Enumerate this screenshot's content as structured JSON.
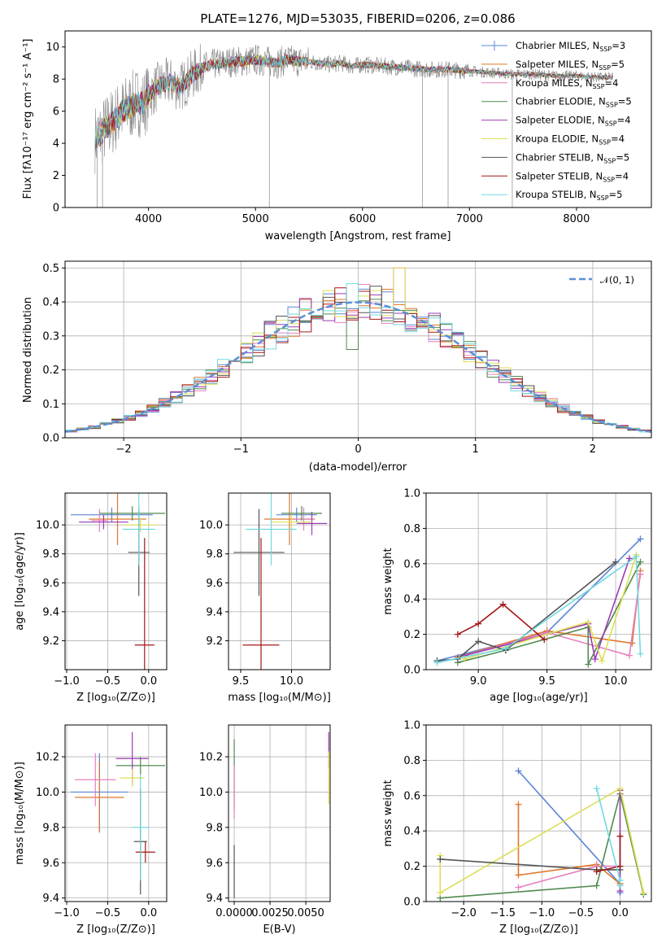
{
  "colors": {
    "chabrier_miles": "#5b84d4",
    "salpeter_miles": "#e0772b",
    "kroupa_miles": "#e67fbf",
    "chabrier_elodie": "#4f8a4f",
    "salpeter_elodie": "#9b3bb5",
    "kroupa_elodie": "#dede55",
    "chabrier_stelib": "#555555",
    "salpeter_stelib": "#a31717",
    "kroupa_stelib": "#6fd9e0",
    "normal": "#5a8fd6"
  },
  "chart_data": [
    {
      "type": "line",
      "name": "spectrum",
      "title": "PLATE=1276, MJD=53035, FIBERID=0206, z=0.086",
      "xlabel": "wavelength [Angstrom, rest frame]",
      "ylabel": "Flux [fλ10⁻¹⁷ erg cm⁻² s⁻¹ A⁻¹]",
      "xlim": [
        3220,
        8700
      ],
      "ylim": [
        0,
        11
      ],
      "xticks": [
        "4000",
        "5000",
        "6000",
        "7000",
        "8000"
      ],
      "yticks": [
        "0",
        "2",
        "4",
        "6",
        "8",
        "10"
      ],
      "grid": false,
      "legend_position": "top-right",
      "legend": [
        {
          "label": "Chabrier MILES, N",
          "sub": "SSP",
          "suffix": "=3"
        },
        {
          "label": "Salpeter MILES, N",
          "sub": "SSP",
          "suffix": "=5"
        },
        {
          "label": "Kroupa MILES, N",
          "sub": "SSP",
          "suffix": "=4"
        },
        {
          "label": "Chabrier ELODIE, N",
          "sub": "SSP",
          "suffix": "=5"
        },
        {
          "label": "Salpeter ELODIE, N",
          "sub": "SSP",
          "suffix": "=4"
        },
        {
          "label": "Kroupa ELODIE, N",
          "sub": "SSP",
          "suffix": "=4"
        },
        {
          "label": "Chabrier STELIB, N",
          "sub": "SSP",
          "suffix": "=5"
        },
        {
          "label": "Salpeter STELIB, N",
          "sub": "SSP",
          "suffix": "=4"
        },
        {
          "label": "Kroupa STELIB, N",
          "sub": "SSP",
          "suffix": "=5"
        }
      ],
      "continuum": [
        [
          3500,
          4.3
        ],
        [
          3600,
          4.9
        ],
        [
          3700,
          5.6
        ],
        [
          3800,
          6.2
        ],
        [
          3900,
          6.6
        ],
        [
          3950,
          6.4
        ],
        [
          4000,
          7.0
        ],
        [
          4100,
          7.6
        ],
        [
          4200,
          7.8
        ],
        [
          4300,
          7.5
        ],
        [
          4400,
          8.2
        ],
        [
          4500,
          8.7
        ],
        [
          4600,
          8.9
        ],
        [
          4700,
          9.0
        ],
        [
          4800,
          9.1
        ],
        [
          4900,
          9.1
        ],
        [
          5000,
          9.2
        ],
        [
          5100,
          9.1
        ],
        [
          5200,
          9.0
        ],
        [
          5300,
          9.2
        ],
        [
          5400,
          9.1
        ],
        [
          5500,
          9.1
        ],
        [
          5600,
          9.0
        ],
        [
          5700,
          8.9
        ],
        [
          5800,
          9.0
        ],
        [
          5900,
          8.8
        ],
        [
          6000,
          8.9
        ],
        [
          6200,
          8.8
        ],
        [
          6400,
          8.7
        ],
        [
          6600,
          8.6
        ],
        [
          6800,
          8.6
        ],
        [
          7000,
          8.5
        ],
        [
          7200,
          8.4
        ],
        [
          7400,
          8.3
        ],
        [
          7600,
          8.3
        ],
        [
          7800,
          8.2
        ],
        [
          8000,
          8.2
        ],
        [
          8200,
          8.1
        ],
        [
          8350,
          8.1
        ]
      ]
    },
    {
      "type": "bar",
      "name": "residual-histogram",
      "xlabel": "(data-model)/error",
      "ylabel": "Normed distribution",
      "xlim": [
        -2.5,
        2.5
      ],
      "ylim": [
        0,
        0.52
      ],
      "xticks": [
        "−2",
        "−1",
        "0",
        "1",
        "2"
      ],
      "yticks": [
        "0.0",
        "0.1",
        "0.2",
        "0.3",
        "0.4",
        "0.5"
      ],
      "grid": true,
      "legend_position": "top-right",
      "legend": [
        {
          "label": "𝒩(0, 1)"
        }
      ],
      "bin_width": 0.1
    },
    {
      "type": "scatter",
      "name": "age-vs-metallicity",
      "xlabel": "Z [log₁₀(Z/Z⊙)]",
      "ylabel": "age  [log₁₀(age/yr)]",
      "xlim": [
        -1.02,
        0.22
      ],
      "ylim": [
        9.0,
        10.22
      ],
      "xticks": [
        "−1.0",
        "−0.5",
        "0.0"
      ],
      "yticks": [
        "9.2",
        "9.4",
        "9.6",
        "9.8",
        "10.0"
      ],
      "grid": true,
      "points": [
        {
          "series": "chabrier_miles",
          "x": -0.45,
          "xerr": 0.5,
          "y": 10.07,
          "yerr": 0.05
        },
        {
          "series": "salpeter_miles",
          "x": -0.38,
          "xerr": 0.35,
          "y": 10.04,
          "yerr": 0.18
        },
        {
          "series": "kroupa_miles",
          "x": -0.6,
          "xerr": 0.1,
          "y": 10.03,
          "yerr": 0.08
        },
        {
          "series": "chabrier_elodie",
          "x": -0.2,
          "xerr": 0.4,
          "y": 10.08,
          "yerr": 0.05
        },
        {
          "series": "salpeter_elodie",
          "x": -0.55,
          "xerr": 0.3,
          "y": 10.02,
          "yerr": 0.05
        },
        {
          "series": "kroupa_elodie",
          "x": -0.1,
          "xerr": 0.2,
          "y": 10.0,
          "yerr": 0.05
        },
        {
          "series": "chabrier_stelib",
          "x": -0.12,
          "xerr": 0.13,
          "y": 9.81,
          "yerr": 0.3
        },
        {
          "series": "salpeter_stelib",
          "x": -0.05,
          "xerr": 0.12,
          "y": 9.17,
          "yerr": 0.74
        },
        {
          "series": "kroupa_stelib",
          "x": -0.12,
          "xerr": 0.2,
          "y": 9.97,
          "yerr": 0.25
        }
      ]
    },
    {
      "type": "scatter",
      "name": "age-vs-mass",
      "xlabel": "mass [log₁₀(M/M⊙)]",
      "ylabel": "",
      "xlim": [
        9.38,
        10.38
      ],
      "ylim": [
        9.0,
        10.22
      ],
      "xticks": [
        "9.5",
        "10.0"
      ],
      "yticks": [
        "9.2",
        "9.4",
        "9.6",
        "9.8",
        "10.0"
      ],
      "grid": true,
      "points": [
        {
          "series": "chabrier_miles",
          "x": 10.05,
          "xerr": 0.2,
          "y": 10.07,
          "yerr": 0.05
        },
        {
          "series": "salpeter_miles",
          "x": 9.98,
          "xerr": 0.25,
          "y": 10.04,
          "yerr": 0.18
        },
        {
          "series": "kroupa_miles",
          "x": 10.12,
          "xerr": 0.1,
          "y": 10.04,
          "yerr": 0.08
        },
        {
          "series": "chabrier_elodie",
          "x": 10.1,
          "xerr": 0.2,
          "y": 10.08,
          "yerr": 0.05
        },
        {
          "series": "salpeter_elodie",
          "x": 10.2,
          "xerr": 0.15,
          "y": 10.01,
          "yerr": 0.08
        },
        {
          "series": "kroupa_elodie",
          "x": 10.0,
          "xerr": 0.2,
          "y": 10.02,
          "yerr": 0.05
        },
        {
          "series": "chabrier_stelib",
          "x": 9.68,
          "xerr": 0.25,
          "y": 9.81,
          "yerr": 0.3
        },
        {
          "series": "salpeter_stelib",
          "x": 9.7,
          "xerr": 0.18,
          "y": 9.17,
          "yerr": 0.74
        },
        {
          "series": "kroupa_stelib",
          "x": 9.8,
          "xerr": 0.25,
          "y": 9.97,
          "yerr": 0.25
        }
      ]
    },
    {
      "type": "line",
      "name": "mass-weight-vs-age",
      "xlabel": "age  [log₁₀(age/yr)]",
      "ylabel": "mass weight",
      "xlim": [
        8.62,
        10.26
      ],
      "ylim": [
        0,
        1
      ],
      "xticks": [
        "9.0",
        "9.5",
        "10.0"
      ],
      "yticks": [
        "0.0",
        "0.2",
        "0.4",
        "0.6",
        "0.8",
        "1.0"
      ],
      "grid": true,
      "series": [
        {
          "name": "chabrier_miles",
          "x": [
            8.7,
            9.5,
            10.18
          ],
          "y": [
            0.05,
            0.21,
            0.74
          ]
        },
        {
          "name": "salpeter_miles",
          "x": [
            8.85,
            9.5,
            10.12,
            10.18
          ],
          "y": [
            0.07,
            0.22,
            0.15,
            0.56
          ]
        },
        {
          "name": "kroupa_miles",
          "x": [
            8.9,
            9.5,
            10.1,
            10.18
          ],
          "y": [
            0.08,
            0.21,
            0.08,
            0.54
          ]
        },
        {
          "name": "chabrier_elodie",
          "x": [
            8.85,
            9.2,
            9.8,
            9.8,
            10.18
          ],
          "y": [
            0.04,
            0.11,
            0.24,
            0.03,
            0.61
          ]
        },
        {
          "name": "salpeter_elodie",
          "x": [
            8.9,
            9.8,
            9.85,
            10.1
          ],
          "y": [
            0.08,
            0.26,
            0.06,
            0.63
          ]
        },
        {
          "name": "kroupa_elodie",
          "x": [
            8.9,
            9.8,
            9.9,
            10.15
          ],
          "y": [
            0.06,
            0.27,
            0.05,
            0.65
          ]
        },
        {
          "name": "chabrier_stelib",
          "x": [
            8.7,
            8.85,
            9.0,
            9.2,
            10.0
          ],
          "y": [
            0.05,
            0.06,
            0.16,
            0.11,
            0.61
          ]
        },
        {
          "name": "salpeter_stelib",
          "x": [
            8.85,
            9.0,
            9.18,
            9.48
          ],
          "y": [
            0.2,
            0.26,
            0.37,
            0.17
          ]
        },
        {
          "name": "kroupa_stelib",
          "x": [
            8.7,
            9.2,
            10.15,
            10.18
          ],
          "y": [
            0.04,
            0.12,
            0.64,
            0.09
          ]
        }
      ]
    },
    {
      "type": "scatter",
      "name": "mass-vs-metallicity",
      "xlabel": "Z [log₁₀(Z/Z⊙)]",
      "ylabel": "mass [log₁₀(M/M⊙)]",
      "xlim": [
        -1.02,
        0.22
      ],
      "ylim": [
        9.38,
        10.38
      ],
      "xticks": [
        "−1.0",
        "−0.5",
        "0.0"
      ],
      "yticks": [
        "9.4",
        "9.6",
        "9.8",
        "10.0",
        "10.2"
      ],
      "grid": true,
      "points": [
        {
          "series": "chabrier_miles",
          "x": -0.6,
          "xerr": 0.35,
          "y": 10.0,
          "yerr": 0.22
        },
        {
          "series": "salpeter_miles",
          "x": -0.6,
          "xerr": 0.3,
          "y": 9.97,
          "yerr": 0.2
        },
        {
          "series": "kroupa_miles",
          "x": -0.65,
          "xerr": 0.25,
          "y": 10.07,
          "yerr": 0.15
        },
        {
          "series": "chabrier_elodie",
          "x": -0.1,
          "xerr": 0.3,
          "y": 10.15,
          "yerr": 0.05
        },
        {
          "series": "salpeter_elodie",
          "x": -0.2,
          "xerr": 0.2,
          "y": 10.19,
          "yerr": 0.15
        },
        {
          "series": "kroupa_elodie",
          "x": -0.2,
          "xerr": 0.15,
          "y": 10.08,
          "yerr": 0.05
        },
        {
          "series": "chabrier_stelib",
          "x": -0.1,
          "xerr": 0.08,
          "y": 9.72,
          "yerr": 0.3
        },
        {
          "series": "salpeter_stelib",
          "x": -0.04,
          "xerr": 0.12,
          "y": 9.66,
          "yerr": 0.06
        },
        {
          "series": "kroupa_stelib",
          "x": -0.1,
          "xerr": 0.1,
          "y": 9.8,
          "yerr": 0.3
        }
      ]
    },
    {
      "type": "scatter",
      "name": "mass-vs-ebv",
      "xlabel": "E(B-V)",
      "ylabel": "",
      "xlim": [
        -0.0004,
        0.0067
      ],
      "ylim": [
        9.38,
        10.38
      ],
      "xticks": [
        "0.0000",
        "0.0025",
        "0.0050"
      ],
      "yticks": [
        "9.4",
        "9.6",
        "9.8",
        "10.0",
        "10.2"
      ],
      "grid": true,
      "points": [
        {
          "series": "chabrier_elodie",
          "x": 0.0,
          "xerr": 0,
          "y": 10.1,
          "yerr": 0.2
        },
        {
          "series": "chabrier_stelib",
          "x": 0.0,
          "xerr": 0,
          "y": 9.55,
          "yerr": 0.15
        },
        {
          "series": "kroupa_miles",
          "x": 0.0,
          "xerr": 0,
          "y": 10.0,
          "yerr": 0.15
        },
        {
          "series": "salpeter_elodie",
          "x": 0.0066,
          "xerr": 0,
          "y": 10.24,
          "yerr": 0.1
        },
        {
          "series": "kroupa_elodie",
          "x": 0.0066,
          "xerr": 0,
          "y": 10.08,
          "yerr": 0.15
        }
      ]
    },
    {
      "type": "line",
      "name": "mass-weight-vs-metallicity",
      "xlabel": "Z [log₁₀(Z/Z⊙)]",
      "ylabel": "mass weight",
      "xlim": [
        -2.48,
        0.4
      ],
      "ylim": [
        0,
        1
      ],
      "xticks": [
        "−2.0",
        "−1.5",
        "−1.0",
        "−0.5",
        "0.0"
      ],
      "yticks": [
        "0.0",
        "0.2",
        "0.4",
        "0.6",
        "0.8",
        "1.0"
      ],
      "grid": true,
      "series": [
        {
          "name": "chabrier_miles",
          "x": [
            -1.3,
            0.0,
            0.0
          ],
          "y": [
            0.74,
            0.1,
            0.05
          ]
        },
        {
          "name": "salpeter_miles",
          "x": [
            -1.3,
            -1.3,
            -0.3,
            0.0
          ],
          "y": [
            0.55,
            0.15,
            0.21,
            0.1
          ]
        },
        {
          "name": "kroupa_miles",
          "x": [
            -1.3,
            -0.3,
            -0.3,
            0.0
          ],
          "y": [
            0.08,
            0.2,
            0.2,
            0.2
          ]
        },
        {
          "name": "chabrier_elodie",
          "x": [
            -2.3,
            -0.3,
            0.0,
            0.3
          ],
          "y": [
            0.02,
            0.09,
            0.61,
            0.04
          ]
        },
        {
          "name": "salpeter_elodie",
          "x": [
            0.0,
            0.0
          ],
          "y": [
            0.63,
            0.06
          ]
        },
        {
          "name": "kroupa_elodie",
          "x": [
            -2.3,
            -2.3,
            0.0,
            0.3
          ],
          "y": [
            0.26,
            0.05,
            0.64,
            0.05
          ]
        },
        {
          "name": "chabrier_stelib",
          "x": [
            -2.3,
            -0.3,
            0.0
          ],
          "y": [
            0.24,
            0.18,
            0.18
          ]
        },
        {
          "name": "salpeter_stelib",
          "x": [
            -0.3,
            0.0,
            0.0
          ],
          "y": [
            0.17,
            0.2,
            0.37
          ]
        },
        {
          "name": "kroupa_stelib",
          "x": [
            -0.3,
            0.0,
            0.0
          ],
          "y": [
            0.64,
            0.12,
            0.09
          ]
        }
      ]
    }
  ]
}
